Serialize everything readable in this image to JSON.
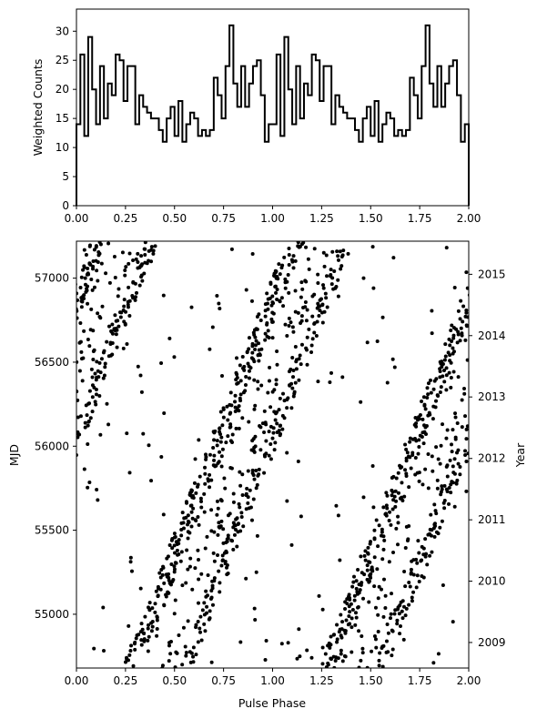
{
  "chart_data": [
    {
      "type": "line",
      "style": "step",
      "xlabel": "",
      "ylabel": "Weighted Counts",
      "xlim": [
        0.0,
        2.0
      ],
      "ylim": [
        0,
        33.8
      ],
      "xticks": [
        "0.00",
        "0.25",
        "0.50",
        "0.75",
        "1.00",
        "1.25",
        "1.50",
        "1.75",
        "2.00"
      ],
      "yticks": [
        "0",
        "5",
        "10",
        "15",
        "20",
        "25",
        "30"
      ],
      "grid": false,
      "color": "#000000",
      "series": [
        {
          "name": "",
          "x": [
            0.0,
            0.02,
            0.04,
            0.06,
            0.08,
            0.1,
            0.12,
            0.14,
            0.16,
            0.18,
            0.2,
            0.22,
            0.24,
            0.26,
            0.28,
            0.3,
            0.32,
            0.34,
            0.36,
            0.38,
            0.4,
            0.42,
            0.44,
            0.46,
            0.48,
            0.5,
            0.52,
            0.54,
            0.56,
            0.58,
            0.6,
            0.62,
            0.64,
            0.66,
            0.68,
            0.7,
            0.72,
            0.74,
            0.76,
            0.78,
            0.8,
            0.82,
            0.84,
            0.86,
            0.88,
            0.9,
            0.92,
            0.94,
            0.96,
            0.98,
            1.0
          ],
          "values": [
            14,
            26,
            12,
            29,
            20,
            14,
            24,
            15,
            21,
            19,
            26,
            25,
            18,
            24,
            24,
            14,
            19,
            17,
            16,
            15,
            15,
            13,
            11,
            15,
            17,
            12,
            18,
            11,
            14,
            16,
            15,
            12,
            13,
            12,
            13,
            22,
            19,
            15,
            24,
            31,
            21,
            17,
            24,
            17,
            21,
            24,
            25,
            19,
            11,
            14,
            19
          ]
        }
      ]
    },
    {
      "type": "scatter",
      "xlabel": "Pulse Phase",
      "ylabel": "MJD",
      "ylabel_right": "Year",
      "xlim": [
        0.0,
        2.0
      ],
      "ylim": [
        54680,
        57220
      ],
      "xticks": [
        "0.00",
        "0.25",
        "0.50",
        "0.75",
        "1.00",
        "1.25",
        "1.50",
        "1.75",
        "2.00"
      ],
      "yticks": [
        "55000",
        "55500",
        "56000",
        "56500",
        "57000"
      ],
      "yticks_right": [
        "2009",
        "2010",
        "2011",
        "2012",
        "2013",
        "2014",
        "2015"
      ],
      "yticks_right_mjd": [
        54832,
        55197,
        55562,
        55927,
        56293,
        56658,
        57023
      ],
      "grid": false,
      "color": "#000000",
      "bands": [
        {
          "name": "",
          "x_at_start": -0.72,
          "slope_phase_per_day": 0.000329,
          "width": 0.09,
          "density": 0.46
        },
        {
          "name": "",
          "x_at_start": -0.58,
          "slope_phase_per_day": 0.000329,
          "width": 0.22,
          "density": 0.26
        },
        {
          "name": "",
          "x_at_start": -0.45,
          "slope_phase_per_day": 0.000329,
          "width": 0.07,
          "density": 0.28
        }
      ]
    }
  ]
}
